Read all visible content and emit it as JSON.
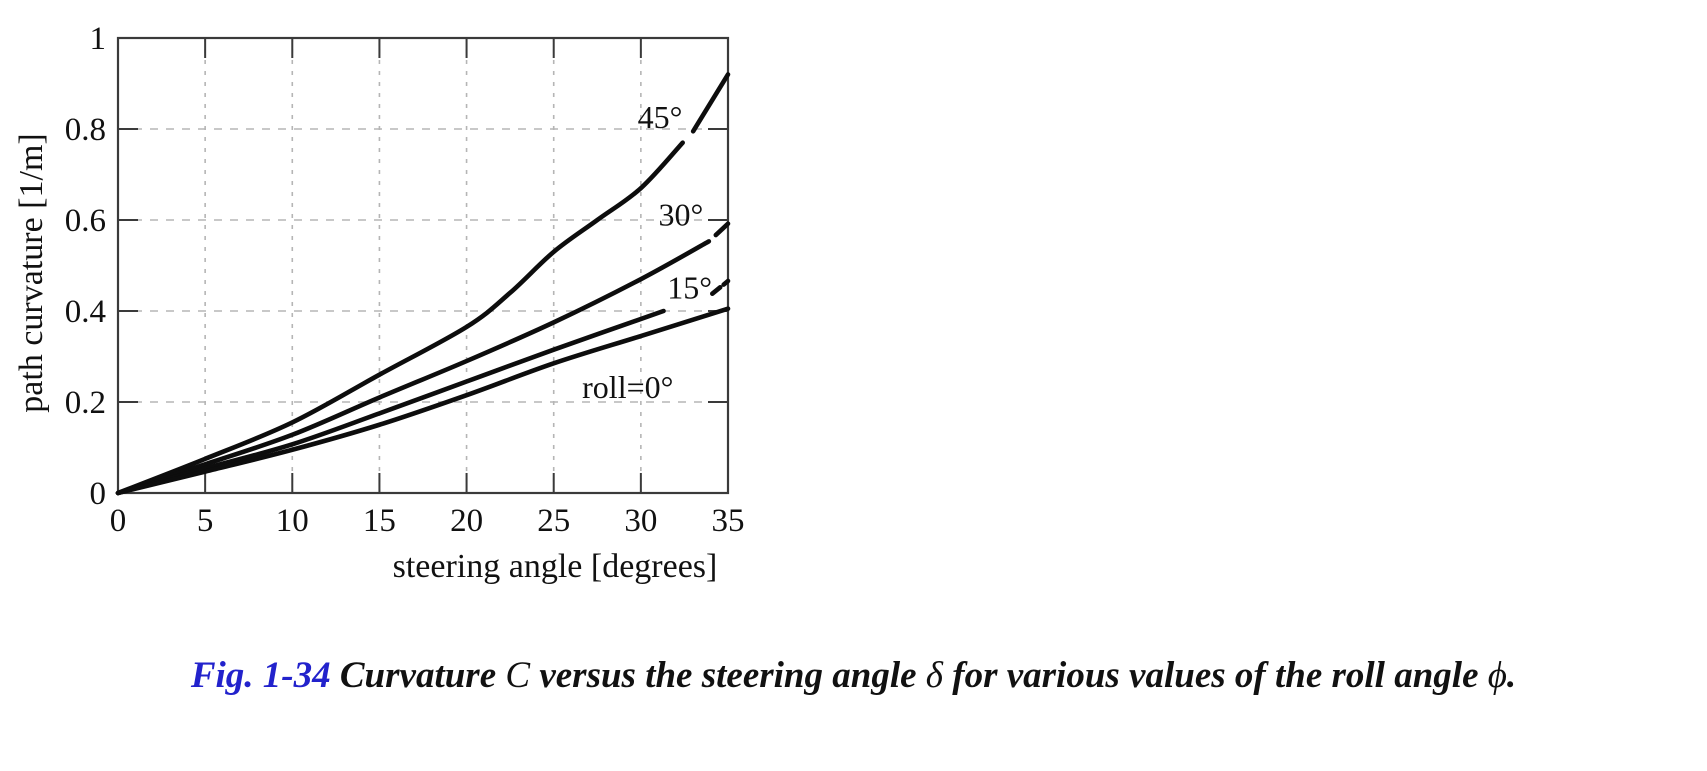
{
  "chart_data": {
    "type": "line",
    "title": "",
    "xlabel": "steering angle [degrees]",
    "ylabel": "path curvature [1/m]",
    "xlim": [
      0,
      35
    ],
    "ylim": [
      0,
      1
    ],
    "x_ticks": [
      0,
      5,
      10,
      15,
      20,
      25,
      30,
      35
    ],
    "x_tick_labels": [
      "0",
      "5",
      "10",
      "15",
      "20",
      "25",
      "30",
      "35"
    ],
    "y_ticks": [
      0,
      0.2,
      0.4,
      0.6,
      0.8,
      1
    ],
    "y_tick_labels": [
      "0",
      "0.2",
      "0.4",
      "0.6",
      "0.8",
      "1"
    ],
    "grid": {
      "style": "dashed",
      "color": "#b5b5b5",
      "x_lines": [
        5,
        10,
        15,
        20,
        25,
        30
      ],
      "y_lines": [
        0.2,
        0.4,
        0.6,
        0.8
      ]
    },
    "legend_position": "inline-labels",
    "line_color": "#0d0d0d",
    "axis_color": "#3a3a3a",
    "series": [
      {
        "name": "roll=45deg",
        "label": "45°",
        "label_x": 31.1,
        "label_y": 0.826,
        "segments": [
          {
            "x": [
              0,
              5,
              10,
              15,
              20,
              22.5,
              25,
              27.5,
              30,
              32.4
            ],
            "y": [
              0,
              0.075,
              0.155,
              0.26,
              0.365,
              0.44,
              0.53,
              0.6,
              0.67,
              0.77
            ]
          },
          {
            "x": [
              33.0,
              35
            ],
            "y": [
              0.795,
              0.92
            ]
          }
        ]
      },
      {
        "name": "roll=30deg",
        "label": "30°",
        "label_x": 32.3,
        "label_y": 0.612,
        "segments": [
          {
            "x": [
              0,
              5,
              10,
              15,
              20,
              25,
              30,
              33.9
            ],
            "y": [
              0,
              0.063,
              0.128,
              0.21,
              0.29,
              0.375,
              0.47,
              0.553
            ]
          },
          {
            "x": [
              34.3,
              35
            ],
            "y": [
              0.567,
              0.592
            ]
          }
        ]
      },
      {
        "name": "roll=15deg",
        "label": "15°",
        "label_x": 32.8,
        "label_y": 0.452,
        "segments": [
          {
            "x": [
              0,
              5,
              10,
              15,
              20,
              25,
              31.3
            ],
            "y": [
              0,
              0.054,
              0.107,
              0.175,
              0.245,
              0.315,
              0.4
            ]
          },
          {
            "x": [
              34.1,
              34.55
            ],
            "y": [
              0.438,
              0.452
            ]
          },
          {
            "x": [
              34.75,
              35.0
            ],
            "y": [
              0.458,
              0.466
            ]
          }
        ]
      },
      {
        "name": "roll=0deg",
        "label": "roll=0°",
        "label_x": 29.25,
        "label_y": 0.233,
        "segments": [
          {
            "x": [
              0,
              5,
              10,
              15,
              20,
              25,
              30,
              35
            ],
            "y": [
              0,
              0.047,
              0.095,
              0.15,
              0.215,
              0.285,
              0.345,
              0.405
            ]
          }
        ]
      }
    ]
  },
  "caption": {
    "segments": [
      {
        "style": "fig",
        "text": "Fig. 1-34 "
      },
      {
        "style": "bold",
        "text": "Curvature "
      },
      {
        "style": "math",
        "text": "C"
      },
      {
        "style": "bold",
        "text": " versus the steering angle "
      },
      {
        "style": "math",
        "text": "δ"
      },
      {
        "style": "bold",
        "text": " for various values of the roll angle "
      },
      {
        "style": "math",
        "text": "ϕ"
      },
      {
        "style": "bold",
        "text": "."
      }
    ]
  }
}
